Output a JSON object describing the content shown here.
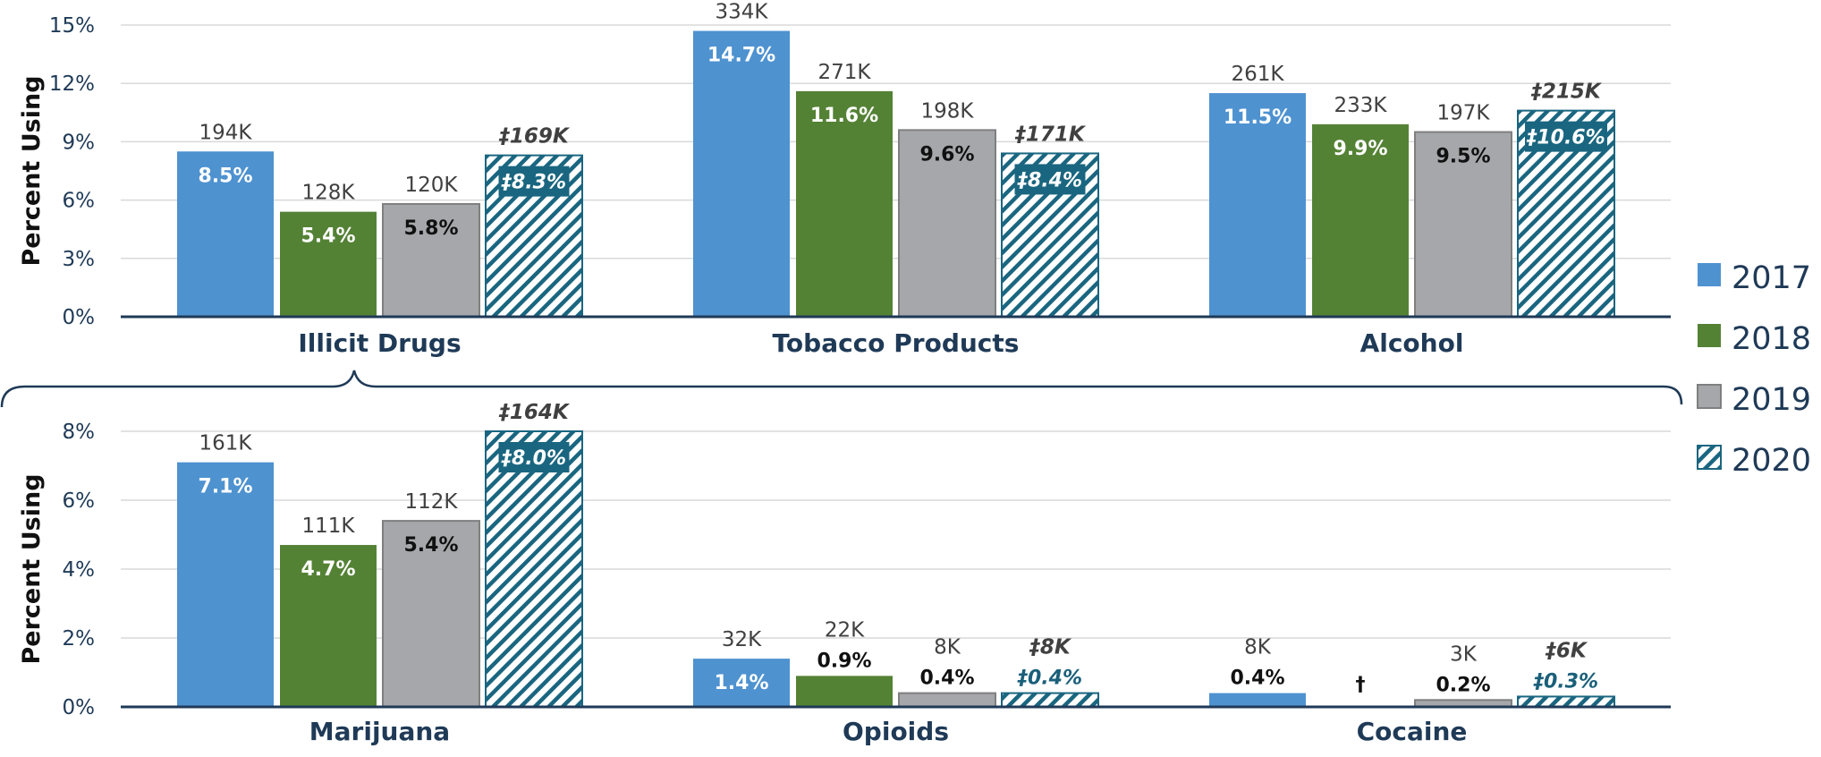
{
  "chart_data": [
    {
      "type": "bar",
      "ylabel": "Percent Using",
      "ylim": [
        0,
        15
      ],
      "yticks": [
        "0%",
        "3%",
        "6%",
        "9%",
        "12%",
        "15%"
      ],
      "categories": [
        "Illicit Drugs",
        "Tobacco Products",
        "Alcohol"
      ],
      "series": [
        {
          "name": "2017",
          "values": [
            8.5,
            14.7,
            11.5
          ],
          "pct_labels": [
            "8.5%",
            "14.7%",
            "11.5%"
          ],
          "count_labels": [
            "194K",
            "334K",
            "261K"
          ]
        },
        {
          "name": "2018",
          "values": [
            5.4,
            11.6,
            9.9
          ],
          "pct_labels": [
            "5.4%",
            "11.6%",
            "9.9%"
          ],
          "count_labels": [
            "128K",
            "271K",
            "233K"
          ]
        },
        {
          "name": "2019",
          "values": [
            5.8,
            9.6,
            9.5
          ],
          "pct_labels": [
            "5.8%",
            "9.6%",
            "9.5%"
          ],
          "count_labels": [
            "120K",
            "198K",
            "197K"
          ]
        },
        {
          "name": "2020",
          "values": [
            8.3,
            8.4,
            10.6
          ],
          "pct_labels": [
            "‡8.3%",
            "‡8.4%",
            "‡10.6%"
          ],
          "count_labels": [
            "‡169K",
            "‡171K",
            "‡215K"
          ]
        }
      ]
    },
    {
      "type": "bar",
      "ylabel": "Percent Using",
      "ylim": [
        0,
        8
      ],
      "yticks": [
        "0%",
        "2%",
        "4%",
        "6%",
        "8%"
      ],
      "categories": [
        "Marijuana",
        "Opioids",
        "Cocaine"
      ],
      "series": [
        {
          "name": "2017",
          "values": [
            7.1,
            1.4,
            0.4
          ],
          "pct_labels": [
            "7.1%",
            "1.4%",
            "0.4%"
          ],
          "count_labels": [
            "161K",
            "32K",
            "8K"
          ]
        },
        {
          "name": "2018",
          "values": [
            4.7,
            0.9,
            null
          ],
          "pct_labels": [
            "4.7%",
            "0.9%",
            "†"
          ],
          "count_labels": [
            "111K",
            "22K",
            ""
          ]
        },
        {
          "name": "2019",
          "values": [
            5.4,
            0.4,
            0.2
          ],
          "pct_labels": [
            "5.4%",
            "0.4%",
            "0.2%"
          ],
          "count_labels": [
            "112K",
            "8K",
            "3K"
          ]
        },
        {
          "name": "2020",
          "values": [
            8.0,
            0.4,
            0.3
          ],
          "pct_labels": [
            "‡8.0%",
            "‡0.4%",
            "‡0.3%"
          ],
          "count_labels": [
            "‡164K",
            "‡8K",
            "‡6K"
          ]
        }
      ]
    }
  ],
  "legend": {
    "placement": "right",
    "items": [
      {
        "label": "2017",
        "color": "#4e92d0",
        "pattern": "solid"
      },
      {
        "label": "2018",
        "color": "#548235",
        "pattern": "solid"
      },
      {
        "label": "2019",
        "color": "#a5a7aa",
        "pattern": "solid"
      },
      {
        "label": "2020",
        "color": "#1a6680",
        "pattern": "hatched"
      }
    ]
  },
  "colors": {
    "2017": "#4e92d0",
    "2018": "#548235",
    "2019": "#a5a7aa",
    "2019_border": "#7f7f7f",
    "2020": "#1a6680",
    "axis_text": "#1f3a57",
    "gridline": "#d9d9d9"
  }
}
